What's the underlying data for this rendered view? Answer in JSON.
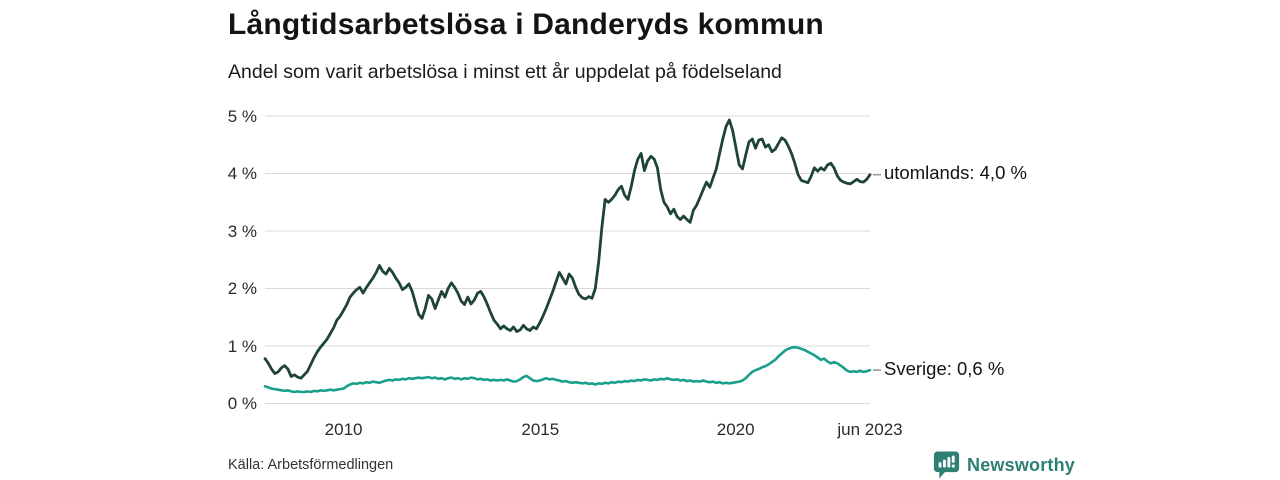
{
  "chart_data": {
    "type": "line",
    "title": "Långtidsarbetslösa i Danderyds kommun",
    "subtitle": "Andel som varit arbetslösa i minst ett år uppdelat på födelseland",
    "unit": "%",
    "grid": true,
    "y_axis": {
      "min": 0,
      "max": 5,
      "tick_values": [
        5,
        4,
        3,
        2,
        1,
        0
      ],
      "tick_labels": [
        "5 %",
        "4 %",
        "3 %",
        "2 %",
        "1 %",
        "0 %"
      ]
    },
    "x_axis": {
      "tick_labels": [
        "2010",
        "2015",
        "2020",
        "jun 2023"
      ],
      "tick_positions": [
        0.13,
        0.455,
        0.778,
        1.0
      ]
    },
    "series": [
      {
        "name": "utomlands",
        "color": "#1e4437",
        "end_label": "utomlands: 4,0 %",
        "end_value": 4.0,
        "values": [
          0.78,
          0.7,
          0.6,
          0.52,
          0.55,
          0.62,
          0.66,
          0.6,
          0.47,
          0.5,
          0.46,
          0.44,
          0.5,
          0.56,
          0.68,
          0.8,
          0.9,
          0.98,
          1.05,
          1.12,
          1.22,
          1.32,
          1.45,
          1.52,
          1.62,
          1.72,
          1.85,
          1.92,
          1.98,
          2.02,
          1.92,
          2.02,
          2.1,
          2.18,
          2.28,
          2.4,
          2.3,
          2.25,
          2.35,
          2.28,
          2.18,
          2.1,
          1.98,
          2.02,
          2.08,
          1.95,
          1.75,
          1.55,
          1.48,
          1.65,
          1.88,
          1.82,
          1.65,
          1.8,
          1.95,
          1.85,
          2.0,
          2.1,
          2.02,
          1.92,
          1.78,
          1.72,
          1.85,
          1.73,
          1.8,
          1.92,
          1.95,
          1.85,
          1.72,
          1.58,
          1.45,
          1.38,
          1.3,
          1.35,
          1.3,
          1.27,
          1.33,
          1.25,
          1.28,
          1.36,
          1.3,
          1.27,
          1.33,
          1.3,
          1.4,
          1.52,
          1.65,
          1.8,
          1.95,
          2.12,
          2.28,
          2.18,
          2.08,
          2.25,
          2.18,
          2.02,
          1.9,
          1.84,
          1.82,
          1.86,
          1.83,
          2.0,
          2.45,
          3.05,
          3.55,
          3.5,
          3.55,
          3.62,
          3.72,
          3.78,
          3.62,
          3.55,
          3.78,
          4.05,
          4.25,
          4.35,
          4.05,
          4.22,
          4.3,
          4.25,
          4.1,
          3.72,
          3.5,
          3.42,
          3.3,
          3.38,
          3.25,
          3.2,
          3.26,
          3.2,
          3.15,
          3.36,
          3.45,
          3.58,
          3.72,
          3.85,
          3.76,
          3.92,
          4.08,
          4.35,
          4.6,
          4.82,
          4.93,
          4.75,
          4.45,
          4.15,
          4.08,
          4.32,
          4.55,
          4.6,
          4.44,
          4.58,
          4.6,
          4.46,
          4.5,
          4.38,
          4.42,
          4.52,
          4.62,
          4.58,
          4.48,
          4.35,
          4.18,
          3.98,
          3.88,
          3.86,
          3.84,
          3.95,
          4.1,
          4.04,
          4.1,
          4.06,
          4.15,
          4.18,
          4.1,
          3.96,
          3.88,
          3.85,
          3.83,
          3.82,
          3.86,
          3.9,
          3.86,
          3.85,
          3.9,
          3.98
        ]
      },
      {
        "name": "Sverige",
        "color": "#1a9f8b",
        "end_label": "Sverige: 0,6 %",
        "end_value": 0.6,
        "values": [
          0.3,
          0.28,
          0.26,
          0.25,
          0.24,
          0.23,
          0.22,
          0.23,
          0.21,
          0.2,
          0.21,
          0.2,
          0.2,
          0.21,
          0.2,
          0.22,
          0.21,
          0.23,
          0.22,
          0.23,
          0.24,
          0.23,
          0.24,
          0.25,
          0.26,
          0.3,
          0.33,
          0.35,
          0.34,
          0.36,
          0.35,
          0.37,
          0.36,
          0.38,
          0.37,
          0.36,
          0.38,
          0.4,
          0.41,
          0.4,
          0.42,
          0.41,
          0.43,
          0.42,
          0.44,
          0.43,
          0.44,
          0.45,
          0.44,
          0.45,
          0.46,
          0.44,
          0.45,
          0.43,
          0.44,
          0.42,
          0.44,
          0.45,
          0.43,
          0.44,
          0.42,
          0.44,
          0.43,
          0.45,
          0.44,
          0.42,
          0.43,
          0.41,
          0.42,
          0.4,
          0.41,
          0.4,
          0.41,
          0.4,
          0.42,
          0.4,
          0.38,
          0.39,
          0.42,
          0.46,
          0.48,
          0.44,
          0.4,
          0.39,
          0.4,
          0.42,
          0.44,
          0.42,
          0.43,
          0.41,
          0.4,
          0.38,
          0.39,
          0.37,
          0.36,
          0.37,
          0.36,
          0.35,
          0.36,
          0.34,
          0.35,
          0.33,
          0.35,
          0.34,
          0.36,
          0.35,
          0.37,
          0.36,
          0.38,
          0.37,
          0.39,
          0.38,
          0.4,
          0.39,
          0.41,
          0.4,
          0.42,
          0.41,
          0.4,
          0.42,
          0.41,
          0.43,
          0.42,
          0.44,
          0.42,
          0.41,
          0.42,
          0.4,
          0.41,
          0.39,
          0.4,
          0.38,
          0.39,
          0.38,
          0.4,
          0.38,
          0.37,
          0.38,
          0.36,
          0.37,
          0.35,
          0.36,
          0.35,
          0.36,
          0.37,
          0.38,
          0.4,
          0.44,
          0.5,
          0.55,
          0.58,
          0.6,
          0.63,
          0.65,
          0.68,
          0.72,
          0.76,
          0.82,
          0.87,
          0.92,
          0.95,
          0.97,
          0.98,
          0.97,
          0.95,
          0.93,
          0.9,
          0.87,
          0.84,
          0.8,
          0.76,
          0.78,
          0.73,
          0.7,
          0.72,
          0.7,
          0.66,
          0.62,
          0.57,
          0.55,
          0.56,
          0.55,
          0.57,
          0.55,
          0.56,
          0.58
        ]
      }
    ],
    "source": "Källa: Arbetsförmedlingen"
  },
  "footer": {
    "source": "Källa: Arbetsförmedlingen",
    "brand": "Newsworthy",
    "brand_color": "#2e8074"
  },
  "colors": {
    "gridline": "#dadada",
    "end_label_dash": "#9a9a9a",
    "text": "#1a1a1a"
  }
}
